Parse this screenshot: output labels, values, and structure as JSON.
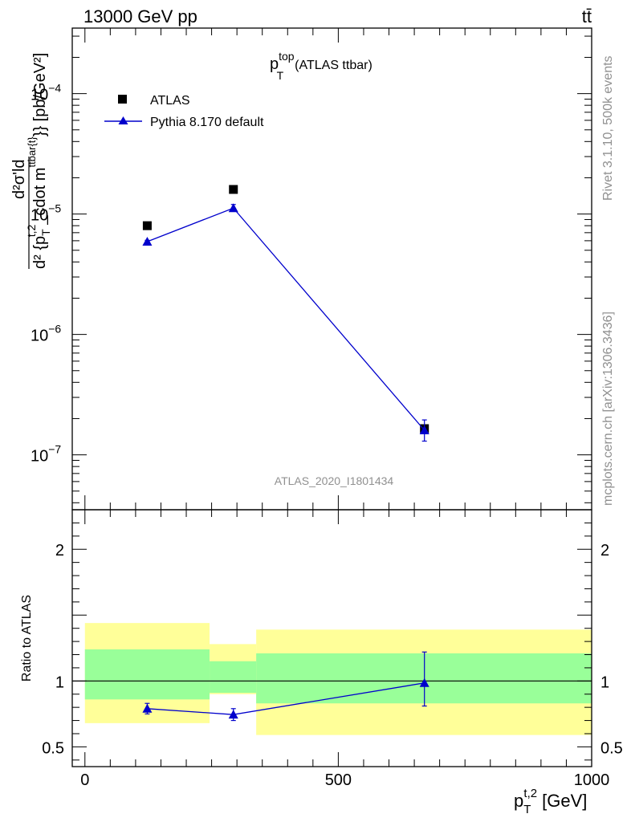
{
  "header": {
    "energy": "13000 GeV pp",
    "process": "tt̄"
  },
  "side_labels": {
    "rivet": "Rivet 3.1.10,  500k events",
    "source": "mcplots.cern.ch [arXiv:1306.3436]"
  },
  "chart_data": [
    {
      "type": "scatter",
      "panel": "main",
      "title": "p_T^top (ATLAS ttbar)",
      "title_parts": {
        "main": "p",
        "sup": "top",
        "sub": "T",
        "rest": "(ATLAS ttbar)"
      },
      "ylabel": "d²σ'ld / d² {p_T^t,2_cdot m^ttbar{t}}} [pb/GeV²]",
      "ylabel_parts": {
        "numerator": "d²σ'ld",
        "denominator": "d² {p",
        "den_sub": "T",
        "den_sup": "t,2",
        "den_rest": "_cdot m",
        "den_sup2": "ttbar{t}",
        "den_tail": "}} [pb/GeV²]"
      },
      "yscale": "log",
      "ylim": [
        3.5e-08,
        0.00035
      ],
      "xlim": [
        -25,
        1000
      ],
      "y_ticks": [
        {
          "value": 1e-07,
          "mantissa": "10",
          "exp": "−7"
        },
        {
          "value": 1e-06,
          "mantissa": "10",
          "exp": "−6"
        },
        {
          "value": 1e-05,
          "mantissa": "10",
          "exp": "−5"
        },
        {
          "value": 0.0001,
          "mantissa": "10",
          "exp": "−4"
        }
      ],
      "watermark": "ATLAS_2020_I1801434",
      "legend_position": "top-left",
      "series": [
        {
          "name": "ATLAS",
          "marker": "square",
          "color": "#000000",
          "points": [
            {
              "x": 123,
              "y": 8e-06
            },
            {
              "x": 293,
              "y": 1.6e-05
            },
            {
              "x": 670,
              "y": 1.65e-07
            }
          ]
        },
        {
          "name": "Pythia 8.170 default",
          "marker": "triangle",
          "color": "#0000cc",
          "line": true,
          "points": [
            {
              "x": 123,
              "y": 5.9e-06,
              "ylo": 5.75e-06,
              "yhi": 6.05e-06
            },
            {
              "x": 293,
              "y": 1.12e-05,
              "ylo": 1.05e-05,
              "yhi": 1.2e-05
            },
            {
              "x": 670,
              "y": 1.6e-07,
              "ylo": 1.3e-07,
              "yhi": 1.95e-07
            }
          ]
        }
      ]
    },
    {
      "type": "scatter",
      "panel": "ratio",
      "ylabel": "Ratio to ATLAS",
      "xlabel": "p_T^t,2 [GeV]",
      "xlabel_parts": {
        "main": "p",
        "sub": "T",
        "sup": "t,2",
        "rest": "[GeV]"
      },
      "xlim": [
        -25,
        1000
      ],
      "ylim": [
        0.35,
        2.3
      ],
      "x_ticks": [
        {
          "value": 0,
          "label": "0"
        },
        {
          "value": 500,
          "label": "500"
        },
        {
          "value": 1000,
          "label": "1000"
        }
      ],
      "y_ticks": [
        {
          "value": 0.5,
          "label": "0.5"
        },
        {
          "value": 1,
          "label": "1"
        },
        {
          "value": 2,
          "label": "2"
        }
      ],
      "bands": [
        {
          "x0": 0,
          "x1": 246,
          "yellow": [
            0.68,
            1.44
          ],
          "green": [
            0.86,
            1.24
          ]
        },
        {
          "x0": 246,
          "x1": 338,
          "yellow": [
            0.9,
            1.28
          ],
          "green": [
            0.91,
            1.15
          ]
        },
        {
          "x0": 338,
          "x1": 1000,
          "yellow": [
            0.59,
            1.39
          ],
          "green": [
            0.83,
            1.21
          ]
        }
      ],
      "band_colors": {
        "yellow": "#ffff99",
        "green": "#99ff99"
      },
      "series": [
        {
          "name": "Pythia 8.170 default",
          "marker": "triangle",
          "color": "#0000cc",
          "points": [
            {
              "x": 123,
              "y": 0.79,
              "ylo": 0.75,
              "yhi": 0.83
            },
            {
              "x": 293,
              "y": 0.745,
              "ylo": 0.7,
              "yhi": 0.79
            },
            {
              "x": 670,
              "y": 0.985,
              "ylo": 0.81,
              "yhi": 1.22
            }
          ]
        }
      ]
    }
  ]
}
